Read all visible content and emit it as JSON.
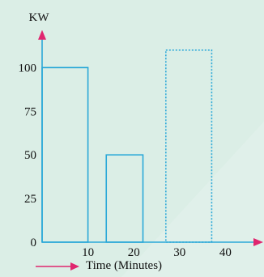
{
  "chart_data": {
    "type": "bar",
    "ylabel": "KW",
    "xlabel": "Time (Minutes)",
    "xlim": [
      0,
      47
    ],
    "ylim": [
      0,
      122
    ],
    "x_ticks": [
      10,
      20,
      30,
      40
    ],
    "y_ticks": [
      0,
      25,
      50,
      75,
      100
    ],
    "x_tick_labels": [
      "10",
      "20",
      "30",
      "40"
    ],
    "y_tick_labels": [
      "0",
      "25",
      "50",
      "75",
      "100"
    ],
    "bars": [
      {
        "x_start": 0,
        "x_end": 10,
        "value": 100,
        "style": "solid"
      },
      {
        "x_start": 14,
        "x_end": 22,
        "value": 50,
        "style": "solid"
      },
      {
        "x_start": 27,
        "x_end": 37,
        "value": 110,
        "style": "dotted"
      }
    ],
    "grid": false,
    "colors": {
      "background": "#dbeee6",
      "bar_outline": "#2aa8d8",
      "axis_arrow": "#e0266f",
      "text": "#111111"
    }
  }
}
